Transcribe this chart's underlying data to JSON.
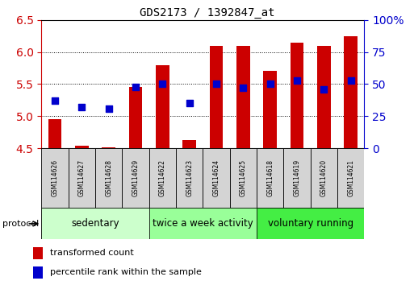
{
  "title": "GDS2173 / 1392847_at",
  "samples": [
    "GSM114626",
    "GSM114627",
    "GSM114628",
    "GSM114629",
    "GSM114622",
    "GSM114623",
    "GSM114624",
    "GSM114625",
    "GSM114618",
    "GSM114619",
    "GSM114620",
    "GSM114621"
  ],
  "transformed_count": [
    4.95,
    4.54,
    4.51,
    5.45,
    5.79,
    4.63,
    6.1,
    6.1,
    5.7,
    6.14,
    6.1,
    6.24
  ],
  "percentile_rank": [
    37,
    32,
    31,
    48,
    50,
    35,
    50,
    47,
    50,
    53,
    46,
    53
  ],
  "groups": [
    {
      "label": "sedentary",
      "start": 0,
      "end": 3,
      "color": "#ccffcc"
    },
    {
      "label": "twice a week activity",
      "start": 4,
      "end": 7,
      "color": "#99ff99"
    },
    {
      "label": "voluntary running",
      "start": 8,
      "end": 11,
      "color": "#44ee44"
    }
  ],
  "ylim_left": [
    4.5,
    6.5
  ],
  "ylim_right": [
    0,
    100
  ],
  "yticks_left": [
    4.5,
    5.0,
    5.5,
    6.0,
    6.5
  ],
  "yticks_right": [
    0,
    25,
    50,
    75,
    100
  ],
  "bar_color": "#cc0000",
  "dot_color": "#0000cc",
  "bar_width": 0.5,
  "dot_size": 40,
  "dot_marker": "s",
  "legend_bar_label": "transformed count",
  "legend_dot_label": "percentile rank within the sample",
  "protocol_label": "protocol",
  "tick_color_left": "#cc0000",
  "tick_color_right": "#0000cc",
  "grid_color": "#000000",
  "group_label_fontsize": 8.5,
  "title_fontsize": 10,
  "sample_label_fontsize": 5.5,
  "legend_fontsize": 8,
  "cell_bg": "#d4d4d4"
}
